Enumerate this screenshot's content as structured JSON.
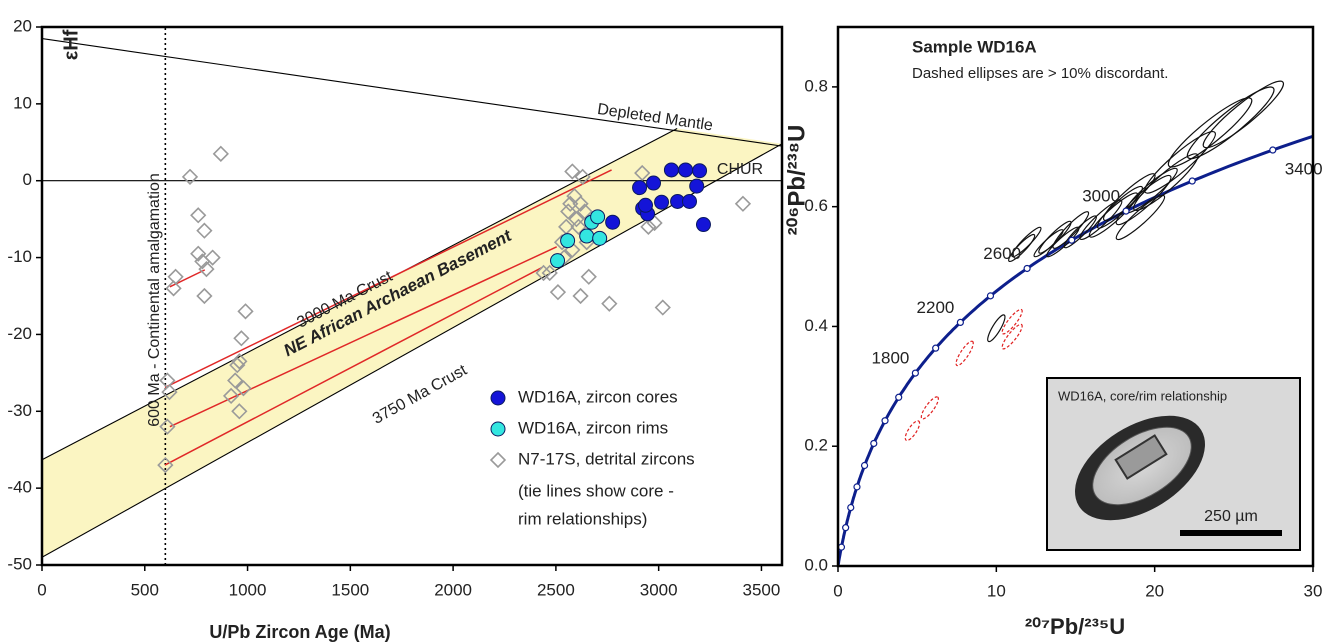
{
  "chart_data": [
    {
      "type": "scatter",
      "x_label": "U/Pb Zircon Age (Ma)",
      "y_label": "εHf",
      "xlim": [
        0,
        3600
      ],
      "ylim": [
        -50,
        20
      ],
      "xticks": [
        0,
        500,
        1000,
        1500,
        2000,
        2500,
        3000,
        3500
      ],
      "yticks": [
        -50,
        -40,
        -30,
        -20,
        -10,
        0,
        10,
        20
      ],
      "series": [
        {
          "name": "WD16A, zircon cores",
          "color": "#1414d8",
          "marker": "circle",
          "x": [
            2907,
            2922,
            2946,
            2975,
            3014,
            3062,
            3092,
            3131,
            3150,
            3199,
            3185,
            3218,
            2776,
            2936
          ],
          "y": [
            -0.9,
            -3.6,
            -4.3,
            -0.3,
            -2.8,
            1.4,
            -2.7,
            1.4,
            -2.7,
            1.3,
            -0.7,
            -5.7,
            -5.4,
            -3.2
          ]
        },
        {
          "name": "WD16A, zircon rims",
          "color": "#33e6e0",
          "marker": "circle",
          "x": [
            2508,
            2557,
            2650,
            2674,
            2703,
            2713
          ],
          "y": [
            -10.4,
            -7.8,
            -7.2,
            -5.4,
            -4.7,
            -7.5
          ]
        },
        {
          "name": "N7-17S, detrital zircons",
          "color": "#9a9a9a",
          "marker": "diamond",
          "x": [
            600,
            610,
            610,
            620,
            640,
            650,
            720,
            760,
            760,
            780,
            790,
            800,
            790,
            830,
            870,
            920,
            940,
            950,
            960,
            970,
            980,
            990,
            960,
            2440,
            2470,
            2510,
            2530,
            2550,
            2560,
            2570,
            2580,
            2590,
            2600,
            2610,
            2620,
            2630,
            2640,
            2650,
            2660,
            2620,
            2540,
            2580,
            2760,
            2920,
            2950,
            2980,
            3020,
            3410
          ],
          "y": [
            -37,
            -32,
            -26,
            -27.5,
            -14,
            -12.5,
            0.5,
            -4.5,
            -9.5,
            -10.5,
            -6.5,
            -11.5,
            -15,
            -10,
            3.5,
            -28,
            -26,
            -24,
            -23.5,
            -20.5,
            -27,
            -17,
            -30,
            -12,
            -12,
            -14.5,
            -8,
            -6,
            -4,
            -3,
            1.2,
            -2,
            -5,
            -6,
            -3,
            0.5,
            -4,
            -8,
            -12.5,
            -15,
            -10,
            -9,
            -16,
            1,
            -6,
            -5.5,
            -16.5,
            -3
          ]
        }
      ],
      "legend_note": [
        "(tie lines show core -",
        "rim relationships)"
      ],
      "tie_line_color": "#e02828",
      "tie_lines": [
        {
          "x": [
            598,
            2771
          ],
          "y": [
            -26.9,
            1.4
          ]
        },
        {
          "x": [
            622,
            2504
          ],
          "y": [
            -32,
            -8.6
          ]
        },
        {
          "x": [
            598,
            2432
          ],
          "y": [
            -37,
            -11.3
          ]
        },
        {
          "x": [
            622,
            792
          ],
          "y": [
            -13.8,
            -11.6
          ]
        }
      ],
      "band_color": "#fbf5c2",
      "band_label": "NE African Archaean Basement",
      "reference_lines": [
        {
          "label": "Depleted Mantle",
          "x": [
            0,
            3600
          ],
          "y": [
            18.5,
            4.5
          ]
        },
        {
          "label": "CHUR",
          "x": [
            0,
            3600
          ],
          "y": [
            0,
            0
          ]
        },
        {
          "label": "3000 Ma Crust",
          "x": [
            0,
            3090
          ],
          "y": [
            -36.3,
            6.8
          ]
        },
        {
          "label": "3750 Ma Crust",
          "x": [
            0,
            3600
          ],
          "y": [
            -49,
            4.8
          ]
        },
        {
          "label": "600 Ma - Continental amalgamation",
          "x": [
            600,
            600
          ],
          "y": [
            -50,
            20
          ],
          "dashed": true
        }
      ]
    },
    {
      "type": "concordia",
      "title": "Sample WD16A",
      "subtitle": "Dashed ellipses are > 10% discordant.",
      "x_label": "²⁰⁷Pb/²³⁵U",
      "y_label": "²⁰⁶Pb/²³⁸U",
      "xlim": [
        0,
        30
      ],
      "ylim": [
        0,
        0.9
      ],
      "xticks": [
        0,
        10,
        20,
        30
      ],
      "yticks": [
        {
          "value": 0,
          "label": "0.0"
        },
        0.2,
        0.4,
        0.6,
        0.8
      ],
      "curve_color": "#0d1f8c",
      "age_markers": [
        200,
        400,
        600,
        800,
        1000,
        1200,
        1400,
        1600,
        1800,
        2000,
        2200,
        2400,
        2600,
        2800,
        3000,
        3200,
        3400
      ],
      "age_labels": [
        1800,
        2200,
        2600,
        3000,
        3400
      ],
      "concordant_color": "#111111",
      "discordant_color": "#e02020",
      "ellipses": {
        "x": [
          11.6,
          11.9,
          13.3,
          13.7,
          14.2,
          14.7,
          15.3,
          16.6,
          17.4,
          17.8,
          18.4,
          19.3,
          19.8,
          20.7,
          21.6,
          23.5,
          24.8,
          25.6,
          10.0,
          19.1,
          11.0,
          11.0,
          8.0,
          5.8,
          4.7
        ],
        "y": [
          0.531,
          0.541,
          0.539,
          0.549,
          0.541,
          0.561,
          0.558,
          0.578,
          0.586,
          0.599,
          0.616,
          0.611,
          0.627,
          0.641,
          0.674,
          0.724,
          0.74,
          0.754,
          0.397,
          0.582,
          0.408,
          0.383,
          0.355,
          0.264,
          0.226
        ],
        "x_err": [
          0.8,
          0.9,
          0.9,
          1.0,
          1.0,
          1.1,
          1.0,
          1.3,
          1.5,
          1.4,
          1.6,
          1.7,
          1.6,
          2.0,
          2.2,
          2.6,
          2.7,
          2.5,
          0.5,
          1.5,
          0.6,
          0.6,
          0.5,
          0.5,
          0.4
        ],
        "y_err": [
          0.022,
          0.024,
          0.022,
          0.026,
          0.024,
          0.03,
          0.026,
          0.032,
          0.036,
          0.034,
          0.038,
          0.04,
          0.036,
          0.046,
          0.05,
          0.056,
          0.058,
          0.054,
          0.022,
          0.036,
          0.02,
          0.02,
          0.02,
          0.018,
          0.016
        ],
        "discordant": [
          false,
          false,
          false,
          false,
          false,
          false,
          false,
          false,
          false,
          false,
          false,
          false,
          false,
          false,
          false,
          false,
          false,
          false,
          false,
          false,
          true,
          true,
          true,
          true,
          true
        ]
      },
      "inset": {
        "caption": "WD16A, core/rim relationship",
        "scale_label": "250 µm"
      }
    }
  ]
}
